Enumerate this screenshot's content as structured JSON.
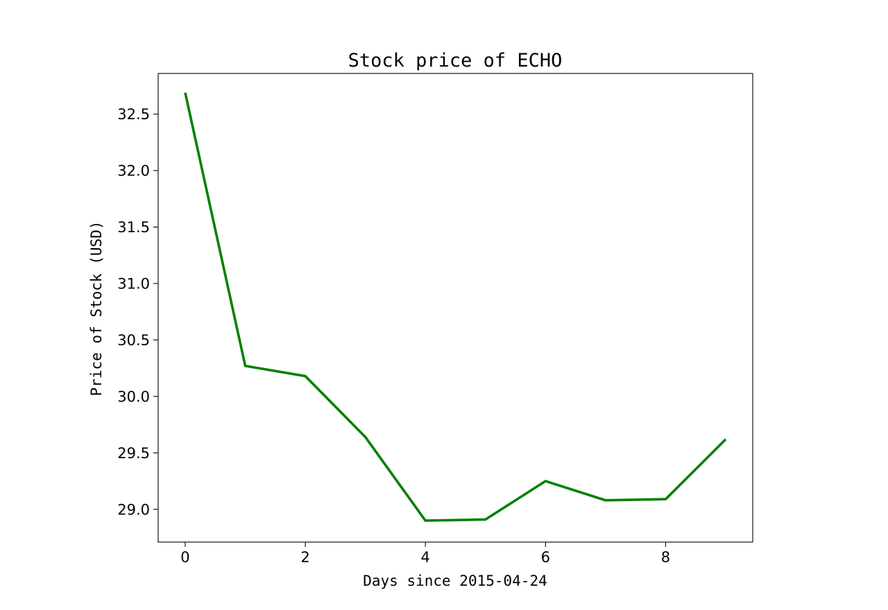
{
  "chart_data": {
    "type": "line",
    "title": "Stock price of ECHO",
    "xlabel": "Days since 2015-04-24",
    "ylabel": "Price of Stock (USD)",
    "xlim": [
      -0.45,
      9.45
    ],
    "ylim": [
      28.71,
      32.86
    ],
    "xticks": [
      0,
      2,
      4,
      6,
      8
    ],
    "xtick_labels": [
      "0",
      "2",
      "4",
      "6",
      "8"
    ],
    "yticks": [
      29.0,
      29.5,
      30.0,
      30.5,
      31.0,
      31.5,
      32.0,
      32.5
    ],
    "ytick_labels": [
      "29.0",
      "29.5",
      "30.0",
      "30.5",
      "31.0",
      "31.5",
      "32.0",
      "32.5"
    ],
    "grid": false,
    "legend": "none",
    "series": [
      {
        "color": "#008000",
        "x": [
          0,
          1,
          2,
          3,
          4,
          5,
          6,
          7,
          8,
          9
        ],
        "values": [
          32.69,
          30.27,
          30.18,
          29.64,
          28.9,
          28.91,
          29.25,
          29.08,
          29.09,
          29.62
        ]
      }
    ]
  }
}
